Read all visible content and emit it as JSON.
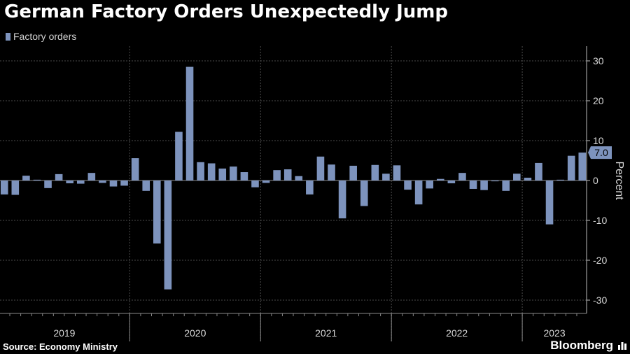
{
  "chart_data": {
    "type": "bar",
    "title": "German Factory Orders Unexpectedly Jump",
    "ylabel": "Percent",
    "ylim": [
      -33,
      33
    ],
    "yticks": [
      30,
      20,
      10,
      0,
      -10,
      -20,
      -30
    ],
    "grid": true,
    "legend_position": "top-left",
    "series": [
      {
        "name": "Factory orders",
        "color": "#7d93bd",
        "start": "2019-01",
        "values": [
          -3.5,
          -3.6,
          1.2,
          0.2,
          -1.9,
          1.6,
          -0.7,
          -0.8,
          1.9,
          -0.6,
          -1.5,
          -1.3,
          5.6,
          -2.6,
          -15.8,
          -27.3,
          12.2,
          28.5,
          4.6,
          4.3,
          3.0,
          3.5,
          2.1,
          -1.7,
          -0.6,
          2.6,
          2.8,
          1.1,
          -3.5,
          6.0,
          4.0,
          -9.5,
          3.7,
          -6.4,
          3.9,
          1.7,
          3.8,
          -2.3,
          -6.0,
          -2.0,
          0.4,
          -0.7,
          1.9,
          -2.1,
          -2.4,
          -0.2,
          -2.6,
          1.7,
          0.7,
          4.4,
          -11.0,
          0.2,
          6.2,
          7.0
        ]
      }
    ],
    "x_year_labels": [
      "2019",
      "2020",
      "2021",
      "2022",
      "2023"
    ],
    "last_value_label": "7.0",
    "source": "Source: Economy Ministry",
    "brand": "Bloomberg"
  }
}
